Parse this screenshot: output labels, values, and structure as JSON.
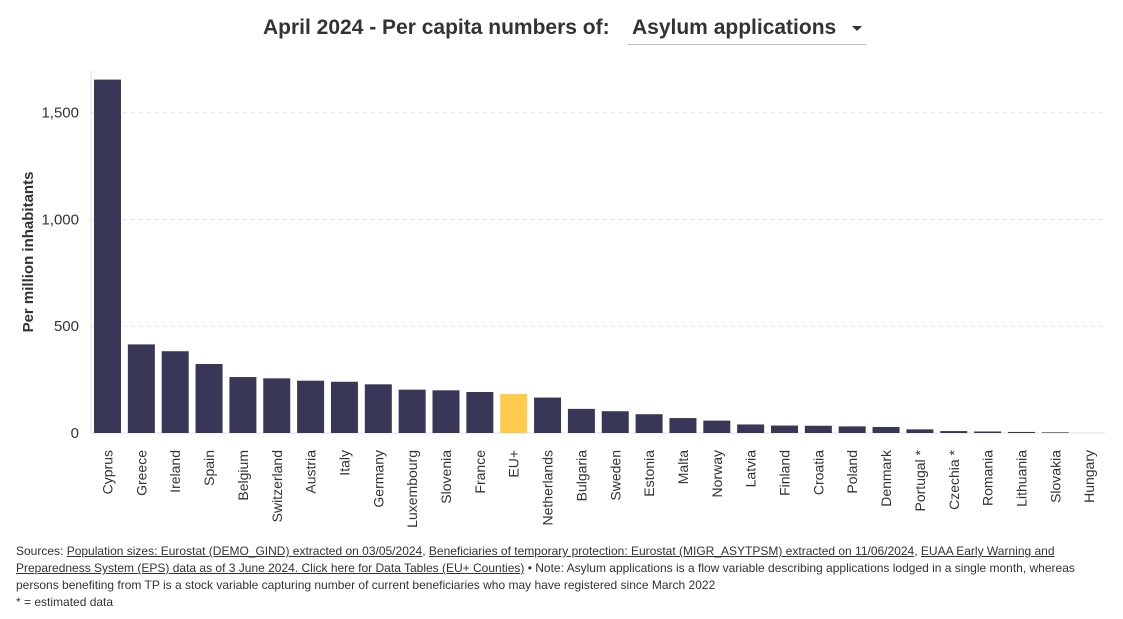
{
  "header": {
    "title_prefix": "April 2024 - Per capita numbers of:",
    "selected_metric": "Asylum applications"
  },
  "chart_data": {
    "type": "bar",
    "ylabel": "Per million inhabitants",
    "xlabel": "",
    "ylim": [
      0,
      1700
    ],
    "yticks": [
      0,
      500,
      1000,
      1500
    ],
    "ytick_labels": [
      "0",
      "500",
      "1,000",
      "1,500"
    ],
    "grid": "horizontal-dashed",
    "categories": [
      "Cyprus",
      "Greece",
      "Ireland",
      "Spain",
      "Belgium",
      "Switzerland",
      "Austria",
      "Italy",
      "Germany",
      "Luxembourg",
      "Slovenia",
      "France",
      "EU+",
      "Netherlands",
      "Bulgaria",
      "Sweden",
      "Estonia",
      "Malta",
      "Norway",
      "Latvia",
      "Finland",
      "Croatia",
      "Poland",
      "Denmark",
      "Portugal *",
      "Czechia *",
      "Romania",
      "Lithuania",
      "Slovakia",
      "Hungary"
    ],
    "values": [
      1655,
      415,
      383,
      323,
      262,
      256,
      245,
      240,
      228,
      203,
      200,
      192,
      183,
      166,
      113,
      102,
      88,
      70,
      58,
      40,
      35,
      34,
      31,
      28,
      17,
      9,
      7,
      5,
      3,
      0
    ],
    "colors": {
      "default": "#383758",
      "highlight": "#fecb4f",
      "highlight_category": "EU+"
    }
  },
  "footer": {
    "sources_prefix": "Sources: ",
    "link_population": "Population sizes: Eurostat (DEMO_GIND) extracted on 03/05/2024",
    "sep1": ", ",
    "link_tp": "Beneficiaries of temporary protection: Eurostat (MIGR_ASYTPSM) extracted on 11/06/2024",
    "sep2": ", ",
    "link_euaa": "EUAA Early Warning and Preparedness System (EPS) data as of 3 June 2024. Click here for Data Tables (EU+ Counties)",
    "note": " • Note: Asylum applications is a flow variable describing applications lodged in a single month, whereas persons benefiting from TP is a stock variable capturing number of current beneficiaries who may have registered since March 2022",
    "estimate_note": "* = estimated data"
  }
}
